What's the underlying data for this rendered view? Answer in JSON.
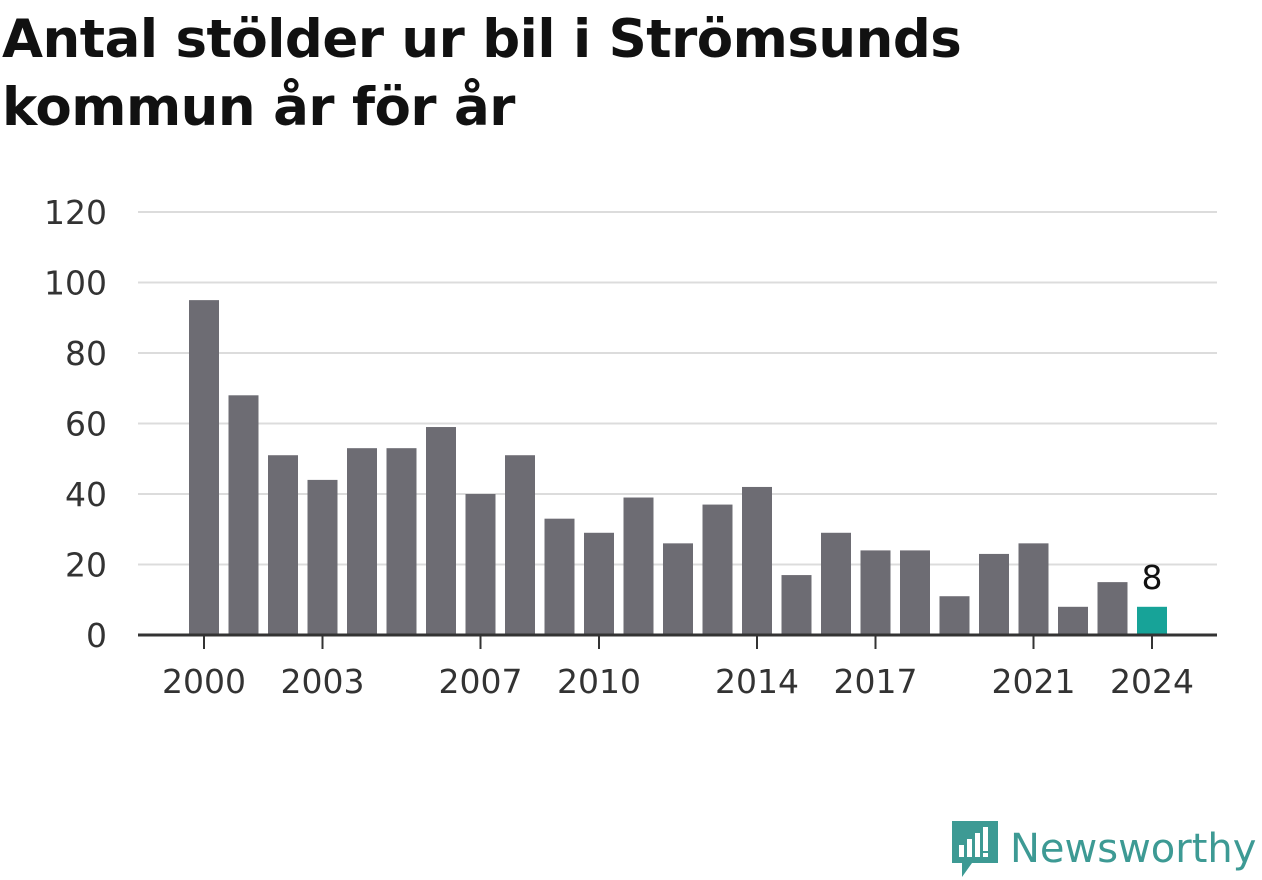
{
  "chart_data": {
    "type": "bar",
    "title": "Antal stölder ur bil i Strömsunds kommun år för år",
    "categories": [
      "2000",
      "2001",
      "2002",
      "2003",
      "2004",
      "2005",
      "2006",
      "2007",
      "2008",
      "2009",
      "2010",
      "2011",
      "2012",
      "2013",
      "2014",
      "2015",
      "2016",
      "2017",
      "2018",
      "2019",
      "2020",
      "2021",
      "2022",
      "2023",
      "2024"
    ],
    "values": [
      95,
      68,
      51,
      44,
      53,
      53,
      59,
      40,
      51,
      33,
      29,
      39,
      26,
      37,
      42,
      17,
      29,
      24,
      24,
      11,
      23,
      26,
      8,
      15,
      8
    ],
    "x_tick_labels": [
      "2000",
      "2003",
      "2007",
      "2010",
      "2014",
      "2017",
      "2021",
      "2024"
    ],
    "y_ticks": [
      0,
      20,
      40,
      60,
      80,
      100,
      120
    ],
    "ylim": [
      0,
      120
    ],
    "xlabel": "",
    "ylabel": "",
    "grid": true,
    "highlight": {
      "category": "2024",
      "label": "8"
    },
    "colors": {
      "bar": "#6d6c73",
      "highlight": "#17a398",
      "grid": "#dcdcdc",
      "axis": "#333333",
      "text": "#333333"
    }
  },
  "brand": {
    "name": "Newsworthy",
    "icon": "newsworthy-logo-icon",
    "color": "#3d9a94"
  }
}
